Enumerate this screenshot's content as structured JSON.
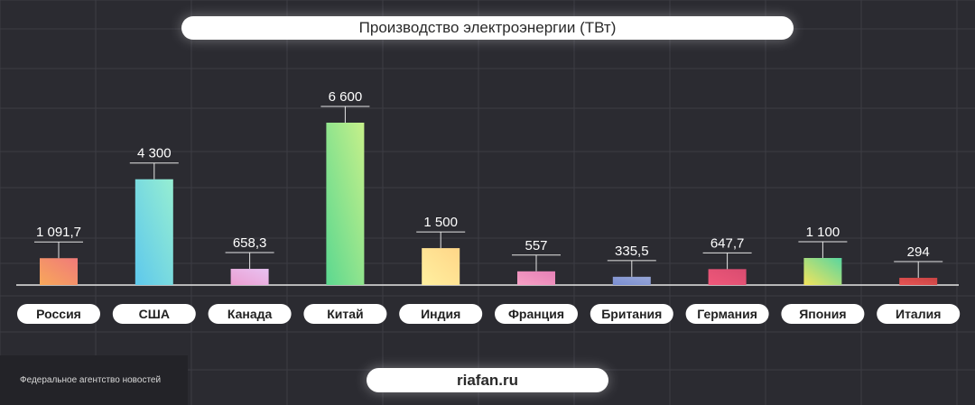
{
  "title": "Производство электроэнергии (ТВт)",
  "source": "riafan.ru",
  "watermark": "Федеральное агентство новостей",
  "colors": {
    "background": "#2b2b31",
    "grid": "#3c3c44",
    "axis": "#e6e6e6",
    "label_pill": "#ffffff",
    "label_text": "#222222"
  },
  "chart_data": {
    "type": "bar",
    "title": "Производство электроэнергии (ТВт)",
    "xlabel": "",
    "ylabel": "",
    "ylim": [
      0,
      8000
    ],
    "grid": true,
    "categories": [
      "Россия",
      "США",
      "Канада",
      "Китай",
      "Индия",
      "Франция",
      "Британия",
      "Германия",
      "Япония",
      "Италия"
    ],
    "values": [
      1091.7,
      4300,
      658.3,
      6600,
      1500,
      557,
      335.5,
      647.7,
      1100,
      294
    ],
    "value_labels": [
      "1 091,7",
      "4 300",
      "658,3",
      "6 600",
      "1 500",
      "557",
      "335,5",
      "647,7",
      "1 100",
      "294"
    ],
    "bar_colors": [
      [
        "#f8a85a",
        "#f07a7a"
      ],
      [
        "#5ec8ec",
        "#96eed2"
      ],
      [
        "#ec9ed0",
        "#e8c2f2"
      ],
      [
        "#5cd890",
        "#c6f08a"
      ],
      [
        "#fff0a0",
        "#ffd688"
      ],
      [
        "#f6a0c4",
        "#e680b6"
      ],
      [
        "#7a8ed2",
        "#97a6d6"
      ],
      [
        "#f0587a",
        "#d84c70"
      ],
      [
        "#f4e45c",
        "#58d6a0"
      ],
      [
        "#e85454",
        "#c84444"
      ]
    ]
  }
}
